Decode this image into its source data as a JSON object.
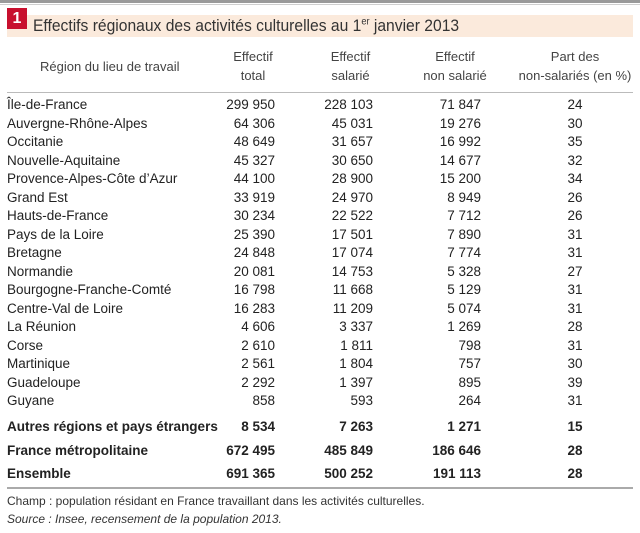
{
  "figure_number": "1",
  "title": {
    "text": "Effectifs régionaux des activités culturelles au 1",
    "sup": "er",
    "suffix": " janvier 2013"
  },
  "headers": [
    {
      "line1": "Région du lieu de travail",
      "line2": ""
    },
    {
      "line1": "Effectif",
      "line2": "total"
    },
    {
      "line1": "Effectif",
      "line2": "salarié"
    },
    {
      "line1": "Effectif",
      "line2": "non salarié"
    },
    {
      "line1": "Part des",
      "line2": "non-salariés (en %)"
    }
  ],
  "rows": [
    [
      "Île-de-France",
      "299 950",
      "228 103",
      "71 847",
      "24"
    ],
    [
      "Auvergne-Rhône-Alpes",
      "64 306",
      "45 031",
      "19 276",
      "30"
    ],
    [
      "Occitanie",
      "48 649",
      "31 657",
      "16 992",
      "35"
    ],
    [
      "Nouvelle-Aquitaine",
      "45 327",
      "30 650",
      "14 677",
      "32"
    ],
    [
      "Provence-Alpes-Côte d’Azur",
      "44 100",
      "28 900",
      "15 200",
      "34"
    ],
    [
      "Grand Est",
      "33 919",
      "24 970",
      "8 949",
      "26"
    ],
    [
      "Hauts-de-France",
      "30 234",
      "22 522",
      "7 712",
      "26"
    ],
    [
      "Pays de la Loire",
      "25 390",
      "17 501",
      "7 890",
      "31"
    ],
    [
      "Bretagne",
      "24 848",
      "17 074",
      "7 774",
      "31"
    ],
    [
      "Normandie",
      "20 081",
      "14 753",
      "5 328",
      "27"
    ],
    [
      "Bourgogne-Franche-Comté",
      "16 798",
      "11 668",
      "5 129",
      "31"
    ],
    [
      "Centre-Val de Loire",
      "16 283",
      "11 209",
      "5 074",
      "31"
    ],
    [
      "La Réunion",
      "4 606",
      "3 337",
      "1 269",
      "28"
    ],
    [
      "Corse",
      "2 610",
      "1 811",
      "798",
      "31"
    ],
    [
      "Martinique",
      "2 561",
      "1 804",
      "757",
      "30"
    ],
    [
      "Guadeloupe",
      "2 292",
      "1 397",
      "895",
      "39"
    ],
    [
      "Guyane",
      "858",
      "593",
      "264",
      "31"
    ]
  ],
  "totals": [
    [
      "Autres régions et pays étrangers",
      "8 534",
      "7 263",
      "1 271",
      "15"
    ],
    [
      "France métropolitaine",
      "672 495",
      "485 849",
      "186 646",
      "28"
    ],
    [
      "Ensemble",
      "691 365",
      "500 252",
      "191 113",
      "28"
    ]
  ],
  "notes": {
    "champ": "Champ : population résidant en France travaillant dans les activités culturelles.",
    "source": "Source : Insee, recensement de la population 2013."
  }
}
